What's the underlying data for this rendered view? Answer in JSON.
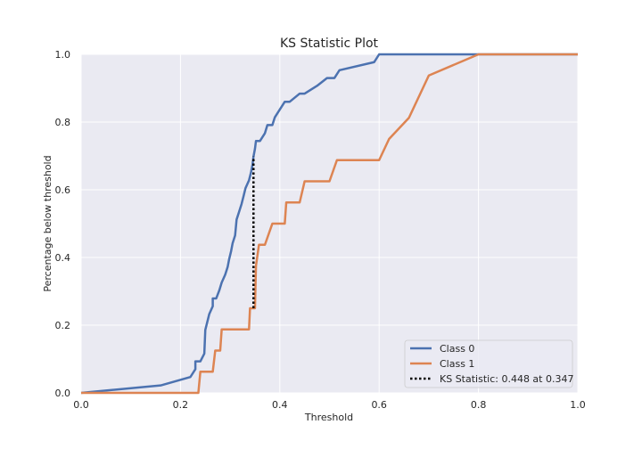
{
  "chart_data": {
    "type": "line",
    "title": "KS Statistic Plot",
    "xlabel": "Threshold",
    "ylabel": "Percentage below threshold",
    "xlim": [
      0.0,
      1.0
    ],
    "ylim": [
      0.0,
      1.0
    ],
    "xticks": [
      "0.0",
      "0.2",
      "0.4",
      "0.6",
      "0.8",
      "1.0"
    ],
    "yticks": [
      "0.0",
      "0.2",
      "0.4",
      "0.6",
      "0.8",
      "1.0"
    ],
    "grid": true,
    "legend_position": "lower-right",
    "background_color": "#eaeaf2",
    "grid_color": "#ffffff",
    "series": [
      {
        "name": "Class 0",
        "color": "#4c72b0",
        "points": [
          [
            0.0,
            0.0
          ],
          [
            0.16,
            0.022
          ],
          [
            0.22,
            0.047
          ],
          [
            0.23,
            0.07
          ],
          [
            0.23,
            0.093
          ],
          [
            0.24,
            0.093
          ],
          [
            0.248,
            0.116
          ],
          [
            0.25,
            0.186
          ],
          [
            0.258,
            0.233
          ],
          [
            0.265,
            0.256
          ],
          [
            0.265,
            0.279
          ],
          [
            0.272,
            0.279
          ],
          [
            0.278,
            0.302
          ],
          [
            0.283,
            0.326
          ],
          [
            0.29,
            0.349
          ],
          [
            0.295,
            0.372
          ],
          [
            0.298,
            0.395
          ],
          [
            0.302,
            0.419
          ],
          [
            0.305,
            0.442
          ],
          [
            0.31,
            0.465
          ],
          [
            0.313,
            0.512
          ],
          [
            0.318,
            0.535
          ],
          [
            0.323,
            0.558
          ],
          [
            0.327,
            0.581
          ],
          [
            0.331,
            0.605
          ],
          [
            0.338,
            0.628
          ],
          [
            0.342,
            0.651
          ],
          [
            0.345,
            0.674
          ],
          [
            0.347,
            0.698
          ],
          [
            0.35,
            0.721
          ],
          [
            0.352,
            0.744
          ],
          [
            0.36,
            0.744
          ],
          [
            0.37,
            0.767
          ],
          [
            0.375,
            0.791
          ],
          [
            0.385,
            0.791
          ],
          [
            0.39,
            0.814
          ],
          [
            0.4,
            0.837
          ],
          [
            0.41,
            0.86
          ],
          [
            0.42,
            0.86
          ],
          [
            0.44,
            0.884
          ],
          [
            0.45,
            0.884
          ],
          [
            0.475,
            0.907
          ],
          [
            0.495,
            0.93
          ],
          [
            0.51,
            0.93
          ],
          [
            0.52,
            0.953
          ],
          [
            0.59,
            0.977
          ],
          [
            0.6,
            1.0
          ],
          [
            1.0,
            1.0
          ]
        ]
      },
      {
        "name": "Class 1",
        "color": "#dd8452",
        "points": [
          [
            0.0,
            0.0
          ],
          [
            0.236,
            0.0
          ],
          [
            0.24,
            0.0625
          ],
          [
            0.265,
            0.0625
          ],
          [
            0.27,
            0.125
          ],
          [
            0.28,
            0.125
          ],
          [
            0.283,
            0.1875
          ],
          [
            0.338,
            0.1875
          ],
          [
            0.34,
            0.25
          ],
          [
            0.35,
            0.25
          ],
          [
            0.352,
            0.375
          ],
          [
            0.358,
            0.4375
          ],
          [
            0.37,
            0.4375
          ],
          [
            0.385,
            0.5
          ],
          [
            0.41,
            0.5
          ],
          [
            0.413,
            0.5625
          ],
          [
            0.44,
            0.5625
          ],
          [
            0.45,
            0.625
          ],
          [
            0.5,
            0.625
          ],
          [
            0.515,
            0.6875
          ],
          [
            0.6,
            0.6875
          ],
          [
            0.62,
            0.75
          ],
          [
            0.66,
            0.8125
          ],
          [
            0.68,
            0.875
          ],
          [
            0.7,
            0.9375
          ],
          [
            0.8,
            1.0
          ],
          [
            1.0,
            1.0
          ]
        ]
      }
    ],
    "ks_line": {
      "name": "KS Statistic: 0.448 at 0.347",
      "color": "#000000",
      "x": 0.347,
      "y_low": 0.25,
      "y_high": 0.698
    }
  }
}
